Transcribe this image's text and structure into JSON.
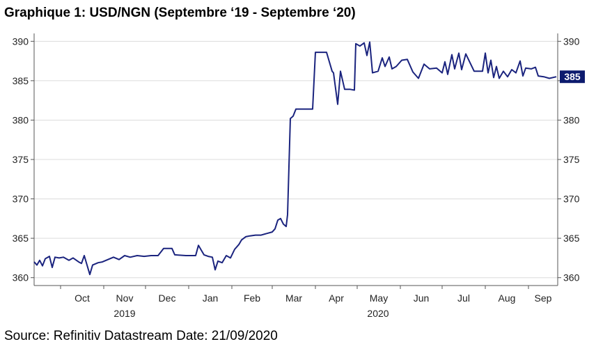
{
  "title": "Graphique 1: USD/NGN (Septembre ‘19 - Septembre ‘20)",
  "source": "Source: Refinitiv Datastream Date: 21/09/2020",
  "colors": {
    "series": "#1a237e",
    "grid": "#dcdcdc",
    "axis": "#555555",
    "badge": "#0d1b6e"
  },
  "chart_data": {
    "type": "line",
    "title": "Graphique 1: USD/NGN (Septembre ‘19 - Septembre ‘20)",
    "xlabel": "",
    "ylabel": "",
    "ylim": [
      359,
      391
    ],
    "yticks": [
      360,
      365,
      370,
      375,
      380,
      385,
      390
    ],
    "dual_y_axis": true,
    "grid": "horizontal",
    "x_month_labels": [
      "Oct",
      "Nov",
      "Dec",
      "Jan",
      "Feb",
      "Mar",
      "Apr",
      "May",
      "Jun",
      "Jul",
      "Aug",
      "Sep"
    ],
    "x_year_labels": [
      "2019",
      "2020"
    ],
    "last_value_badge": "385",
    "series": [
      {
        "points": [
          [
            "2019-09-12",
            362.0
          ],
          [
            "2019-09-14",
            361.6
          ],
          [
            "2019-09-16",
            362.2
          ],
          [
            "2019-09-18",
            361.5
          ],
          [
            "2019-09-20",
            362.4
          ],
          [
            "2019-09-23",
            362.7
          ],
          [
            "2019-09-25",
            361.3
          ],
          [
            "2019-09-27",
            362.6
          ],
          [
            "2019-09-30",
            362.5
          ],
          [
            "2019-10-03",
            362.6
          ],
          [
            "2019-10-07",
            362.2
          ],
          [
            "2019-10-10",
            362.5
          ],
          [
            "2019-10-14",
            362.0
          ],
          [
            "2019-10-16",
            361.8
          ],
          [
            "2019-10-18",
            362.8
          ],
          [
            "2019-10-20",
            361.6
          ],
          [
            "2019-10-22",
            360.4
          ],
          [
            "2019-10-24",
            361.6
          ],
          [
            "2019-10-28",
            361.9
          ],
          [
            "2019-10-31",
            362.0
          ],
          [
            "2019-11-04",
            362.3
          ],
          [
            "2019-11-08",
            362.6
          ],
          [
            "2019-11-12",
            362.3
          ],
          [
            "2019-11-16",
            362.8
          ],
          [
            "2019-11-20",
            362.6
          ],
          [
            "2019-11-25",
            362.8
          ],
          [
            "2019-11-30",
            362.7
          ],
          [
            "2019-12-05",
            362.8
          ],
          [
            "2019-12-10",
            362.8
          ],
          [
            "2019-12-14",
            363.7
          ],
          [
            "2019-12-20",
            363.7
          ],
          [
            "2019-12-22",
            362.9
          ],
          [
            "2019-12-30",
            362.8
          ],
          [
            "2020-01-02",
            362.8
          ],
          [
            "2020-01-06",
            362.8
          ],
          [
            "2020-01-08",
            364.1
          ],
          [
            "2020-01-10",
            363.5
          ],
          [
            "2020-01-12",
            362.9
          ],
          [
            "2020-01-15",
            362.7
          ],
          [
            "2020-01-18",
            362.6
          ],
          [
            "2020-01-20",
            361.0
          ],
          [
            "2020-01-22",
            362.1
          ],
          [
            "2020-01-25",
            361.9
          ],
          [
            "2020-01-28",
            362.8
          ],
          [
            "2020-01-31",
            362.5
          ],
          [
            "2020-02-03",
            363.6
          ],
          [
            "2020-02-06",
            364.2
          ],
          [
            "2020-02-08",
            364.8
          ],
          [
            "2020-02-11",
            365.2
          ],
          [
            "2020-02-14",
            365.3
          ],
          [
            "2020-02-18",
            365.4
          ],
          [
            "2020-02-22",
            365.4
          ],
          [
            "2020-02-26",
            365.6
          ],
          [
            "2020-03-01",
            365.8
          ],
          [
            "2020-03-03",
            366.2
          ],
          [
            "2020-03-05",
            367.3
          ],
          [
            "2020-03-07",
            367.5
          ],
          [
            "2020-03-09",
            366.8
          ],
          [
            "2020-03-11",
            366.5
          ],
          [
            "2020-03-12",
            368.0
          ],
          [
            "2020-03-14",
            380.2
          ],
          [
            "2020-03-16",
            380.5
          ],
          [
            "2020-03-18",
            381.4
          ],
          [
            "2020-03-30",
            381.4
          ],
          [
            "2020-04-01",
            388.6
          ],
          [
            "2020-04-09",
            388.6
          ],
          [
            "2020-04-13",
            386.2
          ],
          [
            "2020-04-14",
            386.0
          ],
          [
            "2020-04-17",
            382.0
          ],
          [
            "2020-04-19",
            386.2
          ],
          [
            "2020-04-22",
            383.9
          ],
          [
            "2020-04-26",
            383.9
          ],
          [
            "2020-04-29",
            383.8
          ],
          [
            "2020-04-30",
            389.7
          ],
          [
            "2020-05-03",
            389.4
          ],
          [
            "2020-05-06",
            389.8
          ],
          [
            "2020-05-08",
            388.2
          ],
          [
            "2020-05-10",
            389.9
          ],
          [
            "2020-05-12",
            386.0
          ],
          [
            "2020-05-16",
            386.2
          ],
          [
            "2020-05-19",
            387.9
          ],
          [
            "2020-05-21",
            386.8
          ],
          [
            "2020-05-24",
            388.0
          ],
          [
            "2020-05-26",
            386.5
          ],
          [
            "2020-05-29",
            386.8
          ],
          [
            "2020-06-02",
            387.6
          ],
          [
            "2020-06-06",
            387.7
          ],
          [
            "2020-06-10",
            386.1
          ],
          [
            "2020-06-14",
            385.3
          ],
          [
            "2020-06-18",
            387.1
          ],
          [
            "2020-06-22",
            386.5
          ],
          [
            "2020-06-27",
            386.6
          ],
          [
            "2020-07-01",
            386.0
          ],
          [
            "2020-07-03",
            387.4
          ],
          [
            "2020-07-05",
            385.8
          ],
          [
            "2020-07-08",
            388.3
          ],
          [
            "2020-07-10",
            386.5
          ],
          [
            "2020-07-13",
            388.5
          ],
          [
            "2020-07-15",
            386.4
          ],
          [
            "2020-07-18",
            388.4
          ],
          [
            "2020-07-24",
            386.2
          ],
          [
            "2020-07-30",
            386.2
          ],
          [
            "2020-08-01",
            388.5
          ],
          [
            "2020-08-03",
            386.0
          ],
          [
            "2020-08-05",
            387.6
          ],
          [
            "2020-08-07",
            385.4
          ],
          [
            "2020-08-09",
            386.8
          ],
          [
            "2020-08-11",
            385.3
          ],
          [
            "2020-08-14",
            386.2
          ],
          [
            "2020-08-17",
            385.5
          ],
          [
            "2020-08-20",
            386.4
          ],
          [
            "2020-08-23",
            386.0
          ],
          [
            "2020-08-26",
            387.5
          ],
          [
            "2020-08-28",
            385.6
          ],
          [
            "2020-08-30",
            386.6
          ],
          [
            "2020-09-03",
            386.5
          ],
          [
            "2020-09-06",
            386.7
          ],
          [
            "2020-09-08",
            385.6
          ],
          [
            "2020-09-12",
            385.5
          ],
          [
            "2020-09-16",
            385.3
          ],
          [
            "2020-09-21",
            385.5
          ]
        ]
      }
    ]
  }
}
